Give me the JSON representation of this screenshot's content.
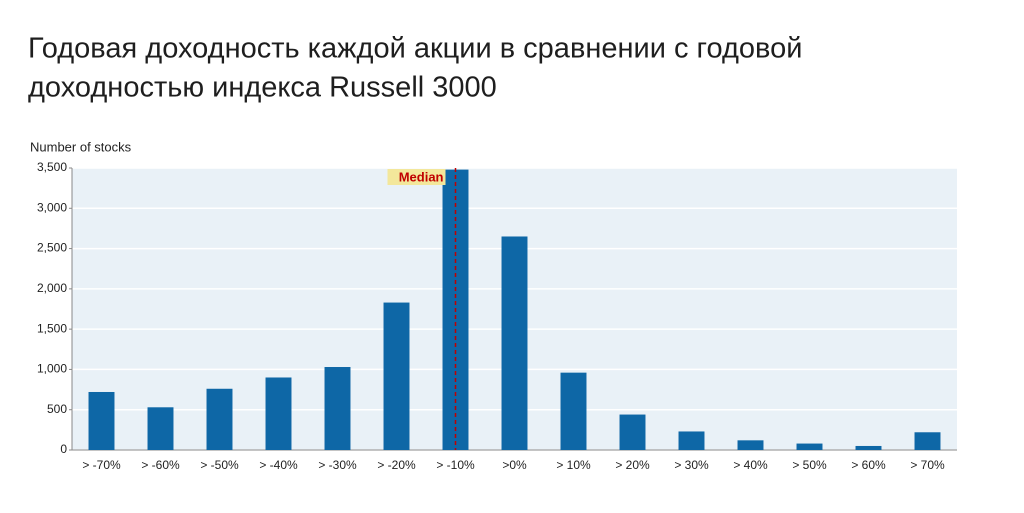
{
  "chart_data": {
    "type": "bar",
    "title_lines": [
      "Годовая доходность каждой акции в сравнении с годовой",
      "доходностью индекса Russell 3000"
    ],
    "y_label": "Number of stocks",
    "categories": [
      "> -70%",
      "> -60%",
      "> -50%",
      "> -40%",
      "> -30%",
      "> -20%",
      "> -10%",
      ">0%",
      "> 10%",
      "> 20%",
      "> 30%",
      "> 40%",
      "> 50%",
      "> 60%",
      "> 70%"
    ],
    "values": [
      720,
      530,
      760,
      900,
      1030,
      1830,
      3480,
      2650,
      960,
      440,
      230,
      120,
      80,
      50,
      220
    ],
    "color": "#0e67a6",
    "ylim": [
      0,
      3500
    ],
    "yticks": [
      0,
      500,
      {
        "value": 1000,
        "label": "1,000"
      },
      {
        "value": 1500,
        "label": "1,500"
      },
      {
        "value": 2000,
        "label": "2,000"
      },
      {
        "value": 2500,
        "label": "2,500"
      },
      {
        "value": 3000,
        "label": "3,000"
      },
      {
        "value": 3500,
        "label": "3,500"
      }
    ],
    "grid": true,
    "annotations": [
      {
        "text": "Median",
        "category": "> -10%",
        "color": "#c00000"
      }
    ]
  }
}
